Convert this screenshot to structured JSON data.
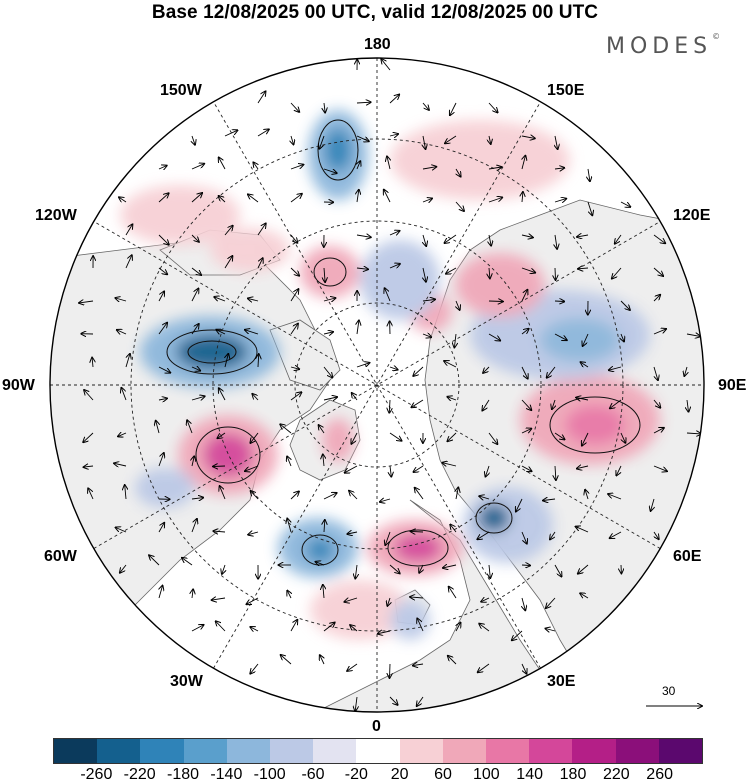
{
  "title": "Base 12/08/2025 00 UTC, valid 12/08/2025 00 UTC",
  "brand": "MODES",
  "brand_mark": "©",
  "longitude_labels": {
    "top": "180",
    "bottom": "0",
    "left": "90W",
    "right": "90E",
    "upper_left_1": "150W",
    "upper_left_2": "120W",
    "upper_right_1": "150E",
    "upper_right_2": "120E",
    "lower_left_1": "60W",
    "lower_left_2": "30W",
    "lower_right_1": "60E",
    "lower_right_2": "30E"
  },
  "reference_vector": {
    "value": "30"
  },
  "colorbar": {
    "ticks": [
      "-260",
      "-220",
      "-180",
      "-140",
      "-100",
      "-60",
      "-20",
      "20",
      "60",
      "100",
      "140",
      "180",
      "220",
      "260"
    ],
    "colors": [
      "#0b3a5c",
      "#14608e",
      "#2f83b8",
      "#5a9fcc",
      "#8db7dc",
      "#bcc9e6",
      "#e3e3f1",
      "#ffffff",
      "#f7d0d5",
      "#f0a8b9",
      "#e877a6",
      "#d4479a",
      "#b41f87",
      "#8b0f7a",
      "#5b086e"
    ]
  },
  "colors": {
    "land": "#eeeeee",
    "ocean": "#ffffff",
    "coast": "#555555",
    "grid": "#222222"
  }
}
